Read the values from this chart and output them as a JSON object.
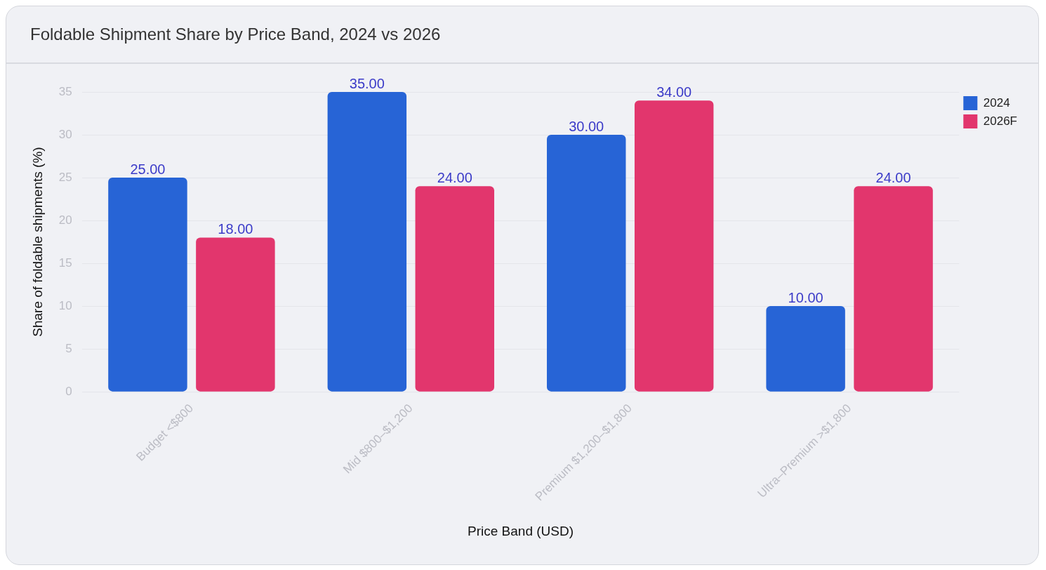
{
  "chart_data": {
    "type": "bar",
    "title": "Foldable Shipment Share by Price Band, 2024 vs 2026",
    "xlabel": "Price Band (USD)",
    "ylabel": "Share of foldable shipments (%)",
    "categories": [
      "Budget <$800",
      "Mid $800–$1,200",
      "Premium $1,200–$1,800",
      "Ultra–Premium >$1,800"
    ],
    "series": [
      {
        "name": "2024",
        "color": "#2764d6",
        "values": [
          25,
          35,
          30,
          10
        ],
        "value_labels": [
          "25.00",
          "35.00",
          "30.00",
          "10.00"
        ]
      },
      {
        "name": "2026F",
        "color": "#e2366d",
        "values": [
          18,
          24,
          34,
          24
        ],
        "value_labels": [
          "18.00",
          "24.00",
          "34.00",
          "24.00"
        ]
      }
    ],
    "ylim": [
      0,
      35
    ],
    "yticks": [
      0,
      5,
      10,
      15,
      20,
      25,
      30,
      35
    ],
    "grid": "y",
    "legend": "top right"
  }
}
